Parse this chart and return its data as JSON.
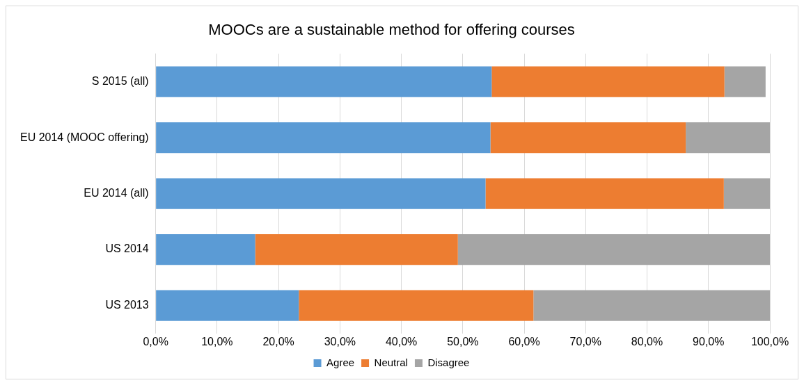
{
  "chart_data": {
    "type": "bar",
    "orientation": "horizontal",
    "stacked": true,
    "title": "MOOCs are a sustainable method for offering courses",
    "categories": [
      "S 2015 (all)",
      "EU 2014 (MOOC offering)",
      "EU 2014 (all)",
      "US 2014",
      "US 2013"
    ],
    "series": [
      {
        "name": "Agree",
        "color": "#5b9bd5",
        "values": [
          54.7,
          54.5,
          53.7,
          16.2,
          23.3
        ]
      },
      {
        "name": "Neutral",
        "color": "#ed7d31",
        "values": [
          37.9,
          31.8,
          38.8,
          33.0,
          38.2
        ]
      },
      {
        "name": "Disagree",
        "color": "#a5a5a5",
        "values": [
          6.7,
          13.7,
          7.5,
          50.8,
          38.5
        ]
      }
    ],
    "xlim": [
      0,
      100
    ],
    "xticks": [
      {
        "value": 0,
        "label": "0,0%"
      },
      {
        "value": 10,
        "label": "10,0%"
      },
      {
        "value": 20,
        "label": "20,0%"
      },
      {
        "value": 30,
        "label": "30,0%"
      },
      {
        "value": 40,
        "label": "40,0%"
      },
      {
        "value": 50,
        "label": "50,0%"
      },
      {
        "value": 60,
        "label": "60,0%"
      },
      {
        "value": 70,
        "label": "70,0%"
      },
      {
        "value": 80,
        "label": "80,0%"
      },
      {
        "value": 90,
        "label": "90,0%"
      },
      {
        "value": 100,
        "label": "100,0%"
      }
    ],
    "grid": "x",
    "legend": "bottom"
  }
}
